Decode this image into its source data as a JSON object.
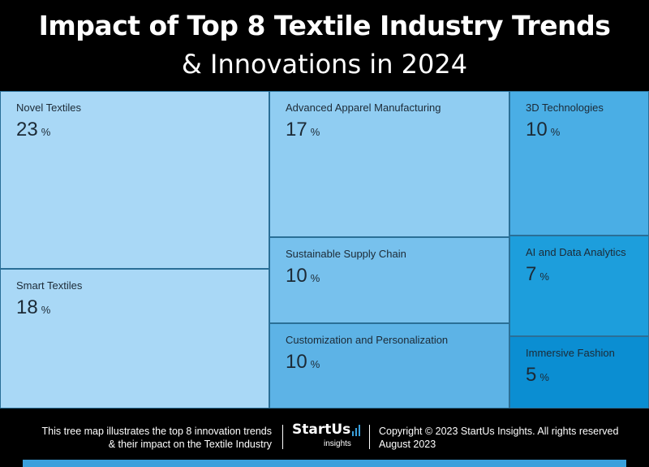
{
  "header": {
    "title_line1": "Impact of Top 8 Textile Industry Trends",
    "title_line2": "& Innovations in 2024"
  },
  "chart_data": {
    "type": "treemap",
    "title": "Impact of Top 8 Textile Industry Trends & Innovations in 2024",
    "unit": "%",
    "items": [
      {
        "label": "Novel Textiles",
        "value": 23,
        "color": "#a9d8f6"
      },
      {
        "label": "Smart Textiles",
        "value": 18,
        "color": "#a9d8f6"
      },
      {
        "label": "Advanced Apparel Manufacturing",
        "value": 17,
        "color": "#90cdf2"
      },
      {
        "label": "Sustainable Supply Chain",
        "value": 10,
        "color": "#77c1ed"
      },
      {
        "label": "Customization and Personalization",
        "value": 10,
        "color": "#5db3e6"
      },
      {
        "label": "3D Technologies",
        "value": 10,
        "color": "#4aaee5"
      },
      {
        "label": "AI and Data Analytics",
        "value": 7,
        "color": "#1d9edc"
      },
      {
        "label": "Immersive Fashion",
        "value": 5,
        "color": "#0b8ed2"
      }
    ]
  },
  "footer": {
    "description_line1": "This tree map illustrates the top 8 innovation trends",
    "description_line2": "& their impact on the Textile Industry",
    "logo_main": "StartUs",
    "logo_sub": "insights",
    "copyright_line1": "Copyright © 2023 StartUs Insights. All rights reserved",
    "copyright_line2": "August 2023",
    "accent_color": "#3aa0dc"
  }
}
